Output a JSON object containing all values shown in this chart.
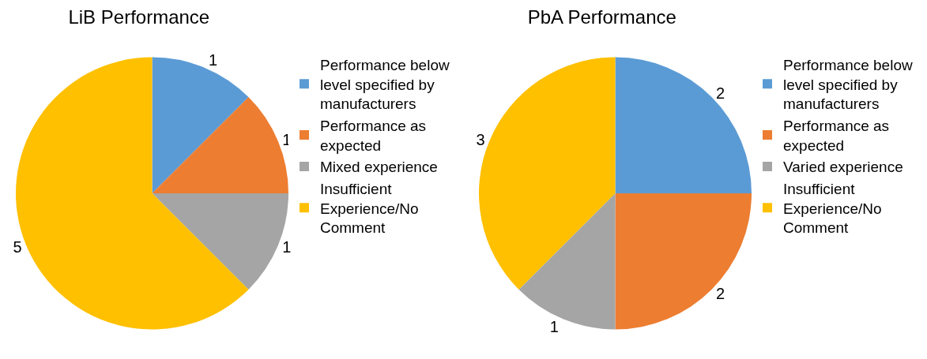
{
  "chart_data": [
    {
      "type": "pie",
      "title": "LiB Performance",
      "categories": [
        "Performance below level specified by manufacturers",
        "Performance as expected",
        "Mixed experience",
        "Insufficient Experience/No Comment"
      ],
      "values": [
        1,
        1,
        1,
        5
      ],
      "colors": [
        "#5b9bd5",
        "#ed7d31",
        "#a5a5a5",
        "#ffc000"
      ],
      "data_labels": true,
      "legend": "right"
    },
    {
      "type": "pie",
      "title": "PbA Performance",
      "categories": [
        "Performance below level specified by manufacturers",
        "Performance as expected",
        "Varied experience",
        "Insufficient Experience/No Comment"
      ],
      "values": [
        2,
        2,
        1,
        3
      ],
      "colors": [
        "#5b9bd5",
        "#ed7d31",
        "#a5a5a5",
        "#ffc000"
      ],
      "data_labels": true,
      "legend": "right"
    }
  ]
}
